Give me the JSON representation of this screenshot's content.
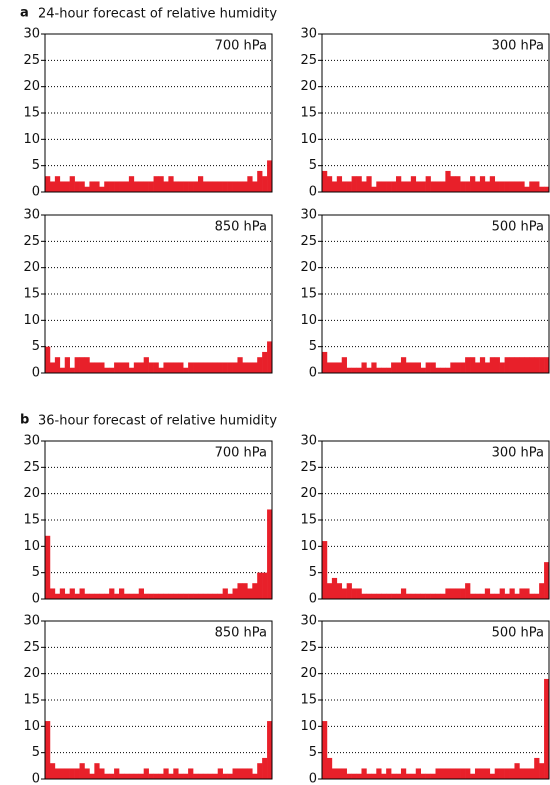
{
  "sections": [
    {
      "letter": "a",
      "title": "24-hour forecast of relative humidity"
    },
    {
      "letter": "b",
      "title": "36-hour forecast of relative humidity"
    }
  ],
  "chart_data": [
    {
      "type": "bar",
      "title": "700 hPa",
      "color": "#e8202a",
      "ylim": [
        0,
        30
      ],
      "yticks": [
        0,
        5,
        10,
        15,
        20,
        25,
        30
      ],
      "grid": true,
      "values": [
        3,
        2,
        3,
        2,
        2,
        3,
        2,
        2,
        1,
        2,
        2,
        1,
        2,
        2,
        2,
        2,
        2,
        3,
        2,
        2,
        2,
        2,
        3,
        3,
        2,
        3,
        2,
        2,
        2,
        2,
        2,
        3,
        2,
        2,
        2,
        2,
        2,
        2,
        2,
        2,
        2,
        3,
        2,
        4,
        3,
        6
      ]
    },
    {
      "type": "bar",
      "title": "300 hPa",
      "color": "#e8202a",
      "ylim": [
        0,
        30
      ],
      "yticks": [
        0,
        5,
        10,
        15,
        20,
        25,
        30
      ],
      "grid": true,
      "values": [
        4,
        3,
        2,
        3,
        2,
        2,
        3,
        3,
        2,
        3,
        1,
        2,
        2,
        2,
        2,
        3,
        2,
        2,
        3,
        2,
        2,
        3,
        2,
        2,
        2,
        4,
        3,
        3,
        2,
        2,
        3,
        2,
        3,
        2,
        3,
        2,
        2,
        2,
        2,
        2,
        2,
        1,
        2,
        2,
        1,
        1
      ]
    },
    {
      "type": "bar",
      "title": "850 hPa",
      "color": "#e8202a",
      "ylim": [
        0,
        30
      ],
      "yticks": [
        0,
        5,
        10,
        15,
        20,
        25,
        30
      ],
      "grid": true,
      "values": [
        5,
        2,
        3,
        1,
        3,
        1,
        3,
        3,
        3,
        2,
        2,
        2,
        1,
        1,
        2,
        2,
        2,
        1,
        2,
        2,
        3,
        2,
        2,
        1,
        2,
        2,
        2,
        2,
        1,
        2,
        2,
        2,
        2,
        2,
        2,
        2,
        2,
        2,
        2,
        3,
        2,
        2,
        2,
        3,
        4,
        6
      ]
    },
    {
      "type": "bar",
      "title": "500 hPa",
      "color": "#e8202a",
      "ylim": [
        0,
        30
      ],
      "yticks": [
        0,
        5,
        10,
        15,
        20,
        25,
        30
      ],
      "grid": true,
      "values": [
        4,
        2,
        2,
        2,
        3,
        1,
        1,
        1,
        2,
        1,
        2,
        1,
        1,
        1,
        2,
        2,
        3,
        2,
        2,
        2,
        1,
        2,
        2,
        1,
        1,
        1,
        2,
        2,
        2,
        3,
        3,
        2,
        3,
        2,
        3,
        3,
        2,
        3,
        3,
        3,
        3,
        3,
        3,
        3,
        3,
        3
      ]
    },
    {
      "type": "bar",
      "title": "700 hPa",
      "color": "#e8202a",
      "ylim": [
        0,
        30
      ],
      "yticks": [
        0,
        5,
        10,
        15,
        20,
        25,
        30
      ],
      "grid": true,
      "values": [
        12,
        2,
        1,
        2,
        1,
        2,
        1,
        2,
        1,
        1,
        1,
        1,
        1,
        2,
        1,
        2,
        1,
        1,
        1,
        2,
        1,
        1,
        1,
        1,
        1,
        1,
        1,
        1,
        1,
        1,
        1,
        1,
        1,
        1,
        1,
        1,
        2,
        1,
        2,
        3,
        3,
        2,
        3,
        5,
        5,
        17
      ]
    },
    {
      "type": "bar",
      "title": "300 hPa",
      "color": "#e8202a",
      "ylim": [
        0,
        30
      ],
      "yticks": [
        0,
        5,
        10,
        15,
        20,
        25,
        30
      ],
      "grid": true,
      "values": [
        11,
        3,
        4,
        3,
        2,
        3,
        2,
        2,
        1,
        1,
        1,
        1,
        1,
        1,
        1,
        1,
        2,
        1,
        1,
        1,
        1,
        1,
        1,
        1,
        1,
        2,
        2,
        2,
        2,
        3,
        1,
        1,
        1,
        2,
        1,
        1,
        2,
        1,
        2,
        1,
        2,
        2,
        1,
        1,
        3,
        7
      ]
    },
    {
      "type": "bar",
      "title": "850 hPa",
      "color": "#e8202a",
      "ylim": [
        0,
        30
      ],
      "yticks": [
        0,
        5,
        10,
        15,
        20,
        25,
        30
      ],
      "grid": true,
      "values": [
        11,
        3,
        2,
        2,
        2,
        2,
        2,
        3,
        2,
        1,
        3,
        2,
        1,
        1,
        2,
        1,
        1,
        1,
        1,
        1,
        2,
        1,
        1,
        1,
        2,
        1,
        2,
        1,
        1,
        2,
        1,
        1,
        1,
        1,
        1,
        2,
        1,
        1,
        2,
        2,
        2,
        2,
        1,
        3,
        4,
        11
      ]
    },
    {
      "type": "bar",
      "title": "500 hPa",
      "color": "#e8202a",
      "ylim": [
        0,
        30
      ],
      "yticks": [
        0,
        5,
        10,
        15,
        20,
        25,
        30
      ],
      "grid": true,
      "values": [
        11,
        4,
        2,
        2,
        2,
        1,
        1,
        1,
        2,
        1,
        1,
        2,
        1,
        2,
        1,
        1,
        2,
        1,
        1,
        2,
        1,
        1,
        1,
        2,
        2,
        2,
        2,
        2,
        2,
        2,
        1,
        2,
        2,
        2,
        1,
        2,
        2,
        2,
        2,
        3,
        2,
        2,
        2,
        4,
        3,
        19
      ]
    }
  ]
}
